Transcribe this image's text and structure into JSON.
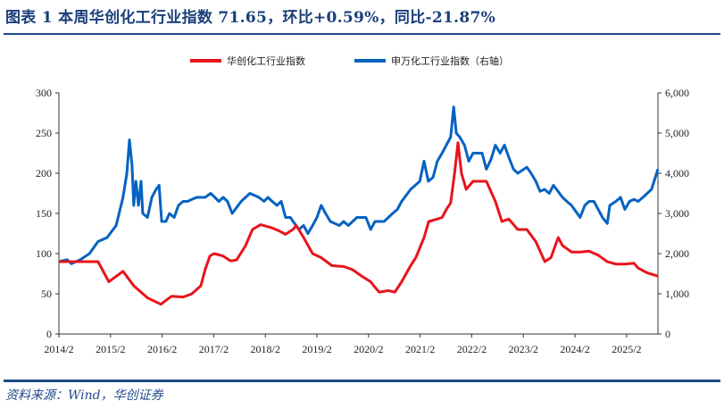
{
  "title": "图表 1   本周华创化工行业指数 71.65，环比+0.59%，同比-21.87%",
  "source": "资料来源：Wind，华创证券",
  "chart_data": {
    "type": "line",
    "x_unit": "months since 2014/2",
    "xlim": [
      0,
      139.5
    ],
    "x_ticks": [
      0,
      12,
      24,
      36,
      48,
      60,
      72,
      84,
      96,
      108,
      120,
      132
    ],
    "x_tick_labels": [
      "2014/2",
      "2015/2",
      "2016/2",
      "2017/2",
      "2018/2",
      "2019/2",
      "2020/2",
      "2021/2",
      "2022/2",
      "2023/2",
      "2024/2",
      "2025/2"
    ],
    "ylim_left": [
      0,
      300
    ],
    "y_ticks_left": [
      "0",
      "50",
      "100",
      "150",
      "200",
      "250",
      "300"
    ],
    "ylim_right": [
      0,
      6000
    ],
    "y_ticks_right": [
      "0",
      "1,000",
      "2,000",
      "3,000",
      "4,000",
      "5,000",
      "6,000"
    ],
    "grid": false,
    "legend_position": "top-center",
    "series": [
      {
        "name": "华创化工行业指数",
        "axis": "left",
        "color": "#e8141c",
        "x": [
          0,
          9.1,
          11.6,
          14.9,
          17.4,
          20.6,
          23.7,
          26.2,
          28.9,
          30.9,
          33,
          34,
          35.1,
          36.1,
          38.2,
          39.9,
          41.3,
          43.4,
          45,
          46.9,
          49.6,
          51.3,
          52.7,
          54.4,
          55.2,
          56.9,
          59,
          61,
          63.5,
          66.2,
          68.3,
          70.4,
          72.5,
          73.5,
          74.5,
          76.6,
          78.1,
          79.7,
          81.8,
          83,
          84.9,
          86,
          88,
          89.1,
          90.1,
          91.1,
          92,
          92.8,
          93.6,
          94.7,
          96.3,
          99.4,
          101.5,
          103,
          104.6,
          106.7,
          108.8,
          110.9,
          113,
          114.4,
          116.1,
          117.1,
          119.2,
          121.2,
          123.3,
          125.4,
          127.5,
          129.5,
          131.6,
          133.7,
          134.7,
          136.8,
          139.3
        ],
        "values": [
          90,
          90,
          65,
          78,
          60,
          45,
          37,
          47,
          46,
          50,
          60,
          80,
          97,
          100,
          97,
          91,
          92,
          110,
          130,
          136,
          132,
          128,
          124,
          130,
          135,
          120,
          100,
          95,
          85,
          84,
          80,
          72,
          65,
          58,
          52,
          54,
          52,
          65,
          85,
          95,
          120,
          140,
          143,
          145,
          155,
          163,
          200,
          238,
          200,
          180,
          190,
          190,
          165,
          140,
          143,
          130,
          130,
          115,
          90,
          95,
          120,
          110,
          102,
          102,
          103,
          98,
          90,
          87,
          87,
          88,
          82,
          76,
          72
        ]
      },
      {
        "name": "申万化工行业指数（右轴）",
        "axis": "right",
        "color": "#0563c1",
        "x": [
          0,
          1.9,
          2.9,
          5,
          7.1,
          9.1,
          11.2,
          13.3,
          14.9,
          15.8,
          16.4,
          17,
          17.4,
          17.9,
          18.5,
          19.1,
          19.5,
          20.6,
          21.6,
          22.6,
          23.3,
          23.9,
          24.9,
          25.7,
          26.8,
          27.8,
          28.9,
          29.9,
          32,
          34,
          35.3,
          37.2,
          38.2,
          39.2,
          40.3,
          42.4,
          44.4,
          46.5,
          47.7,
          48.6,
          49.6,
          50.7,
          51.7,
          52.7,
          53.8,
          55.8,
          56.9,
          57.9,
          59,
          60,
          61,
          62,
          63.1,
          65.2,
          66.2,
          67.3,
          69.3,
          71.4,
          72.5,
          73.5,
          75.6,
          77.6,
          78.7,
          79.7,
          81.8,
          83.9,
          84.9,
          85.9,
          87,
          88,
          89.1,
          90.1,
          91.1,
          91.8,
          92.4,
          93.2,
          94.3,
          95.3,
          96.3,
          98.4,
          99.4,
          100.5,
          101.5,
          102.6,
          103.6,
          104.6,
          105.7,
          106.7,
          108.8,
          109.8,
          110.9,
          111.9,
          112.9,
          114,
          115,
          117.1,
          118.1,
          119.2,
          120.2,
          121.2,
          122.3,
          123.3,
          124.4,
          125.4,
          126.4,
          127.5,
          128.1,
          129.5,
          130.6,
          131.6,
          132.7,
          133.7,
          134.7,
          135.8,
          136.8,
          137.8,
          139.3
        ],
        "values": [
          1800,
          1850,
          1750,
          1850,
          2000,
          2300,
          2400,
          2700,
          3400,
          4000,
          4830,
          4200,
          3200,
          3800,
          3200,
          3800,
          3000,
          2900,
          3400,
          3600,
          3700,
          2800,
          2800,
          3000,
          2900,
          3200,
          3300,
          3300,
          3400,
          3400,
          3500,
          3300,
          3400,
          3300,
          3000,
          3300,
          3500,
          3400,
          3300,
          3400,
          3300,
          3200,
          3300,
          2900,
          2900,
          2600,
          2700,
          2500,
          2700,
          2900,
          3200,
          3000,
          2800,
          2700,
          2800,
          2700,
          2900,
          2900,
          2600,
          2800,
          2800,
          3000,
          3100,
          3300,
          3600,
          3800,
          4300,
          3800,
          3900,
          4300,
          4500,
          4700,
          4900,
          5650,
          5000,
          4900,
          4700,
          4300,
          4500,
          4500,
          4100,
          4350,
          4700,
          4500,
          4700,
          4400,
          4100,
          4000,
          4150,
          4000,
          3800,
          3550,
          3600,
          3500,
          3700,
          3400,
          3300,
          3200,
          3050,
          2900,
          3200,
          3300,
          3300,
          3100,
          2900,
          2750,
          3200,
          3300,
          3400,
          3100,
          3300,
          3350,
          3300,
          3400,
          3500,
          3600,
          4100
        ]
      }
    ]
  }
}
